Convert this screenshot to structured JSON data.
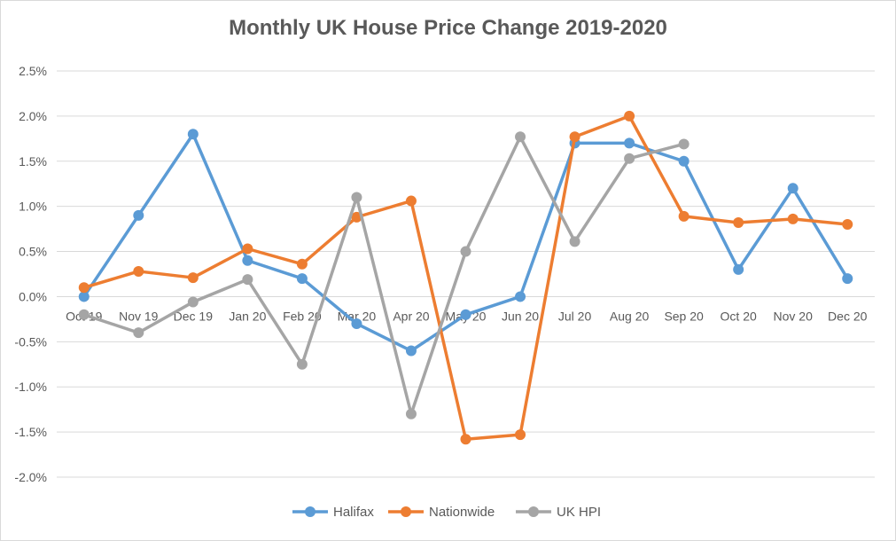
{
  "chart_data": {
    "type": "line",
    "title": "Monthly UK House Price Change 2019-2020",
    "categories": [
      "Oct 19",
      "Nov 19",
      "Dec 19",
      "Jan 20",
      "Feb 20",
      "Mar 20",
      "Apr 20",
      "May 20",
      "Jun 20",
      "Jul 20",
      "Aug 20",
      "Sep 20",
      "Oct 20",
      "Nov 20",
      "Dec 20"
    ],
    "ylim": [
      -2.0,
      2.5
    ],
    "yticks": [
      2.5,
      2.0,
      1.5,
      1.0,
      0.5,
      0.0,
      -0.5,
      -1.0,
      -1.5,
      -2.0
    ],
    "ytick_labels": [
      "2.5%",
      "2.0%",
      "1.5%",
      "1.0%",
      "0.5%",
      "0.0%",
      "-0.5%",
      "-1.0%",
      "-1.5%",
      "-2.0%"
    ],
    "grid": true,
    "legend_position": "bottom",
    "series": [
      {
        "name": "Halifax",
        "color": "#5b9bd5",
        "values": [
          0.0,
          0.9,
          1.8,
          0.4,
          0.2,
          -0.3,
          -0.6,
          -0.2,
          0.0,
          1.7,
          1.7,
          1.5,
          0.3,
          1.2,
          0.2
        ]
      },
      {
        "name": "Nationwide",
        "color": "#ed7d31",
        "values": [
          0.1,
          0.28,
          0.21,
          0.53,
          0.36,
          0.88,
          1.06,
          -1.58,
          -1.53,
          1.77,
          2.0,
          0.89,
          0.82,
          0.86,
          0.8
        ]
      },
      {
        "name": "UK HPI",
        "color": "#a5a5a5",
        "values": [
          -0.2,
          -0.4,
          -0.06,
          0.19,
          -0.75,
          1.1,
          -1.3,
          0.5,
          1.77,
          0.61,
          1.53,
          1.69,
          null,
          null,
          null
        ]
      }
    ]
  }
}
